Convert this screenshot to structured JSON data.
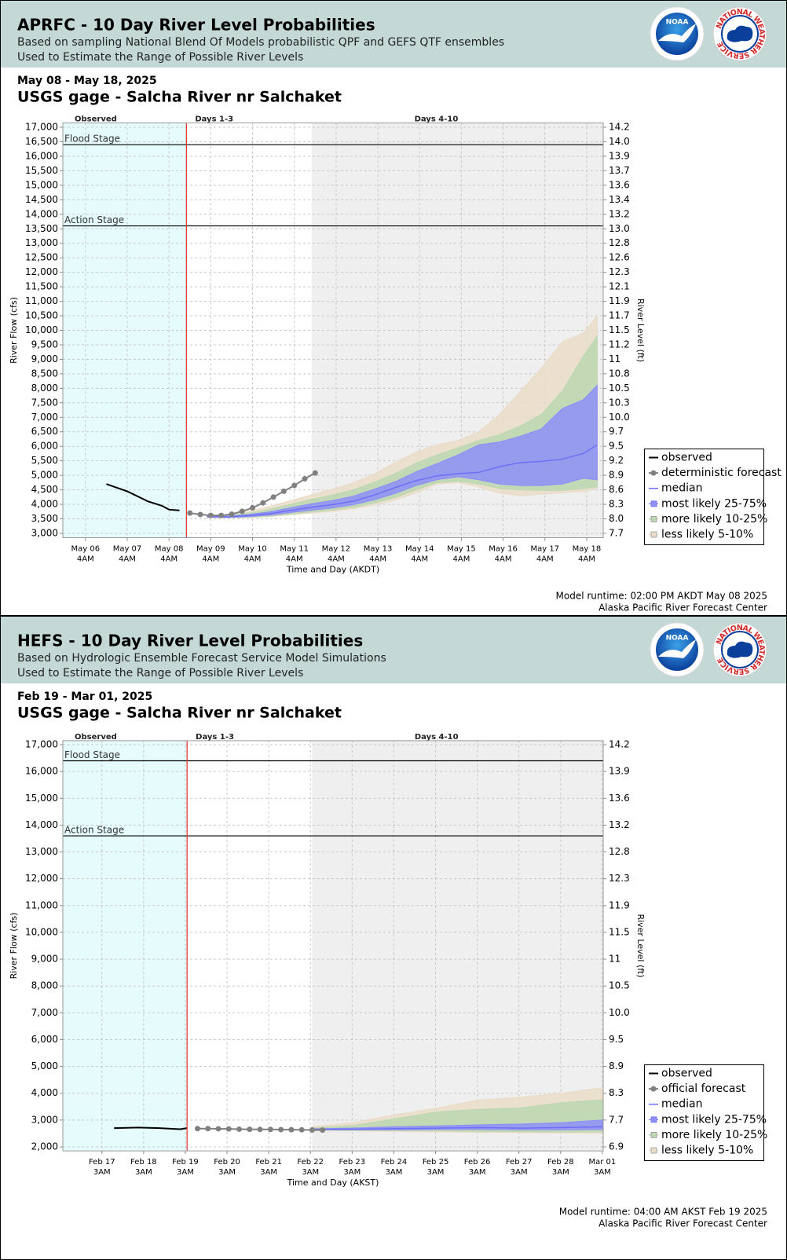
{
  "chart_data": [
    {
      "type": "band-line",
      "title": "APRFC - 10 Day River Level Probabilities",
      "subtitle": "Based on sampling National Blend Of Models probabilistic QPF and GEFS QTF ensembles",
      "subtitle2": "Used to Estimate the Range of Possible River Levels",
      "logos": [
        "NOAA",
        "NATIONAL WEATHER SERVICE"
      ],
      "date_range": "May 08 - May 18, 2025",
      "gage": "USGS gage - Salcha River nr Salchaket",
      "ylabel": "River Flow (cfs)",
      "y2label": "River Level (ft)",
      "xlabel": "Time and Day (AKDT)",
      "footer": [
        "Model runtime: 02:00 PM AKDT May 08 2025",
        "Alaska Pacific River Forecast Center"
      ],
      "region_labels": [
        "Observed",
        "Days 1-3",
        "Days 4-10"
      ],
      "now": "2025-05-08T14:00",
      "extended_start": "2025-05-11T14:00",
      "xlim": [
        "2025-05-05T15:00",
        "2025-05-18T13:30"
      ],
      "xticks": [
        {
          "value": "2025-05-06T04:00",
          "label": "May 06",
          "label2": "4AM"
        },
        {
          "value": "2025-05-07T04:00",
          "label": "May 07",
          "label2": "4AM"
        },
        {
          "value": "2025-05-08T04:00",
          "label": "May 08",
          "label2": "4AM"
        },
        {
          "value": "2025-05-09T04:00",
          "label": "May 09",
          "label2": "4AM"
        },
        {
          "value": "2025-05-10T04:00",
          "label": "May 10",
          "label2": "4AM"
        },
        {
          "value": "2025-05-11T04:00",
          "label": "May 11",
          "label2": "4AM"
        },
        {
          "value": "2025-05-12T04:00",
          "label": "May 12",
          "label2": "4AM"
        },
        {
          "value": "2025-05-13T04:00",
          "label": "May 13",
          "label2": "4AM"
        },
        {
          "value": "2025-05-14T04:00",
          "label": "May 14",
          "label2": "4AM"
        },
        {
          "value": "2025-05-15T04:00",
          "label": "May 15",
          "label2": "4AM"
        },
        {
          "value": "2025-05-16T04:00",
          "label": "May 16",
          "label2": "4AM"
        },
        {
          "value": "2025-05-17T04:00",
          "label": "May 17",
          "label2": "4AM"
        },
        {
          "value": "2025-05-18T04:00",
          "label": "May 18",
          "label2": "4AM"
        }
      ],
      "ylim": [
        2850,
        17150
      ],
      "yticks": [
        {
          "value": 3000,
          "label": "3,000"
        },
        {
          "value": 3500,
          "label": "3,500"
        },
        {
          "value": 4000,
          "label": "4,000"
        },
        {
          "value": 4500,
          "label": "4,500"
        },
        {
          "value": 5000,
          "label": "5,000"
        },
        {
          "value": 5500,
          "label": "5,500"
        },
        {
          "value": 6000,
          "label": "6,000"
        },
        {
          "value": 6500,
          "label": "6,500"
        },
        {
          "value": 7000,
          "label": "7,000"
        },
        {
          "value": 7500,
          "label": "7,500"
        },
        {
          "value": 8000,
          "label": "8,000"
        },
        {
          "value": 8500,
          "label": "8,500"
        },
        {
          "value": 9000,
          "label": "9,000"
        },
        {
          "value": 9500,
          "label": "9,500"
        },
        {
          "value": 10000,
          "label": "10,000"
        },
        {
          "value": 10500,
          "label": "10,500"
        },
        {
          "value": 11000,
          "label": "11,000"
        },
        {
          "value": 11500,
          "label": "11,500"
        },
        {
          "value": 12000,
          "label": "12,000"
        },
        {
          "value": 12500,
          "label": "12,500"
        },
        {
          "value": 13000,
          "label": "13,000"
        },
        {
          "value": 13500,
          "label": "13,500"
        },
        {
          "value": 14000,
          "label": "14,000"
        },
        {
          "value": 14500,
          "label": "14,500"
        },
        {
          "value": 15000,
          "label": "15,000"
        },
        {
          "value": 15500,
          "label": "15,500"
        },
        {
          "value": 16000,
          "label": "16,000"
        },
        {
          "value": 16500,
          "label": "16,500"
        },
        {
          "value": 17000,
          "label": "17,000"
        }
      ],
      "y2ticks": [
        7.7,
        {
          "value": 8,
          "label": "8.0"
        },
        8.3,
        8.6,
        8.9,
        9.2,
        9.5,
        9.7,
        {
          "value": 10,
          "label": "10.0"
        },
        10.3,
        10.5,
        10.8,
        11,
        11.2,
        11.5,
        11.7,
        11.9,
        12.1,
        12.3,
        12.6,
        12.8,
        {
          "value": 13,
          "label": "13.0"
        },
        13.2,
        13.4,
        13.6,
        13.7,
        13.9,
        {
          "value": 14,
          "label": "14.0"
        },
        14.2
      ],
      "grid": true,
      "stages": [
        {
          "label": "Flood Stage",
          "value": 16400
        },
        {
          "label": "Action Stage",
          "value": 13600
        }
      ],
      "band_x": [
        "2025-05-09T02:00",
        "2025-05-09T14:00",
        "2025-05-10T02:00",
        "2025-05-10T14:00",
        "2025-05-11T02:00",
        "2025-05-11T14:00",
        "2025-05-12T02:00",
        "2025-05-12T14:00",
        "2025-05-13T02:00",
        "2025-05-13T14:00",
        "2025-05-14T02:00",
        "2025-05-14T14:00",
        "2025-05-15T02:00",
        "2025-05-15T14:00",
        "2025-05-16T02:00",
        "2025-05-16T14:00",
        "2025-05-17T02:00",
        "2025-05-17T14:00",
        "2025-05-18T02:00",
        "2025-05-18T10:00"
      ],
      "series": [
        {
          "name": "observed",
          "color": "#000000",
          "x": [
            "2025-05-06T16:00",
            "2025-05-07T04:00",
            "2025-05-07T16:00",
            "2025-05-08T00:00",
            "2025-05-08T04:00",
            "2025-05-08T10:00"
          ],
          "values": [
            4700,
            4450,
            4100,
            3950,
            3820,
            3790
          ]
        },
        {
          "name": "deterministic forecast",
          "color": "#808080",
          "x": [
            "2025-05-08T16:00",
            "2025-05-08T22:00",
            "2025-05-09T04:00",
            "2025-05-09T10:00",
            "2025-05-09T16:00",
            "2025-05-09T22:00",
            "2025-05-10T04:00",
            "2025-05-10T10:00",
            "2025-05-10T16:00",
            "2025-05-10T22:00",
            "2025-05-11T04:00",
            "2025-05-11T10:00",
            "2025-05-11T16:00"
          ],
          "values": [
            3700,
            3650,
            3620,
            3620,
            3660,
            3760,
            3880,
            4050,
            4250,
            4450,
            4650,
            4880,
            5080
          ]
        },
        {
          "name": "median",
          "color": "#6f6ff5",
          "values": [
            3570,
            3570,
            3610,
            3680,
            3790,
            3900,
            3990,
            4110,
            4320,
            4580,
            4820,
            4980,
            5060,
            5100,
            5300,
            5440,
            5480,
            5560,
            5750,
            6050
          ]
        },
        {
          "name": "most likely 25-75%",
          "color": "#8f8ff7",
          "low": [
            3560,
            3550,
            3580,
            3630,
            3720,
            3800,
            3880,
            3990,
            4160,
            4380,
            4650,
            4850,
            4950,
            4850,
            4700,
            4650,
            4650,
            4700,
            4900,
            4850
          ],
          "high": [
            3580,
            3590,
            3650,
            3740,
            3880,
            4020,
            4130,
            4280,
            4520,
            4780,
            5120,
            5400,
            5700,
            6050,
            6150,
            6350,
            6600,
            7300,
            7600,
            8100
          ]
        },
        {
          "name": "more likely 10-25%",
          "color": "#bcd8b2",
          "low": [
            3560,
            3545,
            3560,
            3600,
            3670,
            3740,
            3810,
            3900,
            4050,
            4240,
            4500,
            4750,
            4800,
            4700,
            4550,
            4500,
            4480,
            4480,
            4550,
            4600
          ],
          "high": [
            3590,
            3610,
            3700,
            3830,
            4000,
            4170,
            4320,
            4500,
            4760,
            5060,
            5420,
            5700,
            5950,
            6200,
            6400,
            6700,
            7100,
            7900,
            9100,
            9800
          ]
        },
        {
          "name": "less likely 5-10%",
          "color": "#eadcc8",
          "low": [
            3560,
            3540,
            3550,
            3580,
            3640,
            3700,
            3760,
            3850,
            3980,
            4150,
            4400,
            4700,
            4750,
            4600,
            4380,
            4300,
            4350,
            4400,
            4450,
            4550
          ],
          "high": [
            3600,
            3640,
            3760,
            3930,
            4130,
            4330,
            4520,
            4750,
            5050,
            5450,
            5800,
            6050,
            6200,
            6500,
            7100,
            7900,
            8700,
            9600,
            9900,
            10500
          ]
        }
      ]
    },
    {
      "type": "band-line",
      "title": "HEFS - 10 Day River Level Probabilities",
      "subtitle": "Based on Hydrologic Ensemble Forecast Service Model Simulations",
      "subtitle2": "Used to Estimate the Range of Possible River Levels",
      "logos": [
        "NOAA",
        "NATIONAL WEATHER SERVICE"
      ],
      "date_range": "Feb 19 - Mar 01, 2025",
      "gage": "USGS gage - Salcha River nr Salchaket",
      "ylabel": "River Flow (cfs)",
      "y2label": "River Level (ft)",
      "xlabel": "Time and Day (AKST)",
      "footer": [
        "Model runtime: 04:00 AM AKST Feb 19 2025",
        "Alaska Pacific River Forecast Center"
      ],
      "region_labels": [
        "Observed",
        "Days 1-3",
        "Days 4-10"
      ],
      "now": "2025-02-19T04:00",
      "extended_start": "2025-02-22T04:00",
      "xlim": [
        "2025-02-16T04:30",
        "2025-03-01T03:30"
      ],
      "xticks": [
        {
          "value": "2025-02-17T03:00",
          "label": "Feb 17",
          "label2": "3AM"
        },
        {
          "value": "2025-02-18T03:00",
          "label": "Feb 18",
          "label2": "3AM"
        },
        {
          "value": "2025-02-19T03:00",
          "label": "Feb 19",
          "label2": "3AM"
        },
        {
          "value": "2025-02-20T03:00",
          "label": "Feb 20",
          "label2": "3AM"
        },
        {
          "value": "2025-02-21T03:00",
          "label": "Feb 21",
          "label2": "3AM"
        },
        {
          "value": "2025-02-22T03:00",
          "label": "Feb 22",
          "label2": "3AM"
        },
        {
          "value": "2025-02-23T03:00",
          "label": "Feb 23",
          "label2": "3AM"
        },
        {
          "value": "2025-02-24T03:00",
          "label": "Feb 24",
          "label2": "3AM"
        },
        {
          "value": "2025-02-25T03:00",
          "label": "Feb 25",
          "label2": "3AM"
        },
        {
          "value": "2025-02-26T03:00",
          "label": "Feb 26",
          "label2": "3AM"
        },
        {
          "value": "2025-02-27T03:00",
          "label": "Feb 27",
          "label2": "3AM"
        },
        {
          "value": "2025-02-28T03:00",
          "label": "Feb 28",
          "label2": "3AM"
        },
        {
          "value": "2025-03-01T03:00",
          "label": "Mar 01",
          "label2": "3AM"
        }
      ],
      "ylim": [
        1850,
        17150
      ],
      "yticks": [
        {
          "value": 2000,
          "label": "2,000"
        },
        {
          "value": 3000,
          "label": "3,000"
        },
        {
          "value": 4000,
          "label": "4,000"
        },
        {
          "value": 5000,
          "label": "5,000"
        },
        {
          "value": 6000,
          "label": "6,000"
        },
        {
          "value": 7000,
          "label": "7,000"
        },
        {
          "value": 8000,
          "label": "8,000"
        },
        {
          "value": 9000,
          "label": "9,000"
        },
        {
          "value": 10000,
          "label": "10,000"
        },
        {
          "value": 11000,
          "label": "11,000"
        },
        {
          "value": 12000,
          "label": "12,000"
        },
        {
          "value": 13000,
          "label": "13,000"
        },
        {
          "value": 14000,
          "label": "14,000"
        },
        {
          "value": 15000,
          "label": "15,000"
        },
        {
          "value": 16000,
          "label": "16,000"
        },
        {
          "value": 17000,
          "label": "17,000"
        }
      ],
      "y2ticks": [
        6.9,
        7.7,
        8.3,
        8.9,
        9.5,
        {
          "value": 10,
          "label": "10.0"
        },
        10.5,
        11,
        11.5,
        11.9,
        12.3,
        12.8,
        13.2,
        13.6,
        13.9,
        14.2
      ],
      "grid": true,
      "stages": [
        {
          "label": "Flood Stage",
          "value": 16400
        },
        {
          "label": "Action Stage",
          "value": 13600
        }
      ],
      "band_x": [
        "2025-02-22T04:00",
        "2025-02-23T04:00",
        "2025-02-24T04:00",
        "2025-02-25T04:00",
        "2025-02-26T04:00",
        "2025-02-27T04:00",
        "2025-02-28T04:00",
        "2025-03-01T03:00"
      ],
      "series": [
        {
          "name": "observed",
          "color": "#000000",
          "x": [
            "2025-02-17T10:00",
            "2025-02-18T00:00",
            "2025-02-18T12:00",
            "2025-02-19T00:00",
            "2025-02-19T04:00"
          ],
          "values": [
            2700,
            2720,
            2700,
            2660,
            2700
          ]
        },
        {
          "name": "official forecast",
          "color": "#808080",
          "x": [
            "2025-02-19T10:00",
            "2025-02-19T16:00",
            "2025-02-19T22:00",
            "2025-02-20T04:00",
            "2025-02-20T10:00",
            "2025-02-20T16:00",
            "2025-02-20T22:00",
            "2025-02-21T04:00",
            "2025-02-21T10:00",
            "2025-02-21T16:00",
            "2025-02-21T22:00",
            "2025-02-22T04:00",
            "2025-02-22T10:00"
          ],
          "values": [
            2680,
            2680,
            2675,
            2670,
            2660,
            2655,
            2650,
            2650,
            2645,
            2640,
            2635,
            2630,
            2625
          ]
        },
        {
          "name": "median",
          "color": "#6f6ff5",
          "values": [
            2650,
            2660,
            2680,
            2700,
            2720,
            2700,
            2720,
            2750
          ]
        },
        {
          "name": "most likely 25-75%",
          "color": "#8f8ff7",
          "low": [
            2640,
            2640,
            2640,
            2650,
            2650,
            2640,
            2640,
            2650
          ],
          "high": [
            2670,
            2700,
            2750,
            2780,
            2820,
            2850,
            2900,
            3000
          ]
        },
        {
          "name": "more likely 10-25%",
          "color": "#bcd8b2",
          "low": [
            2630,
            2620,
            2610,
            2600,
            2580,
            2570,
            2560,
            2560
          ],
          "high": [
            2700,
            2800,
            3050,
            3300,
            3400,
            3450,
            3650,
            3750
          ]
        },
        {
          "name": "less likely 5-10%",
          "color": "#eadcc8",
          "low": [
            2620,
            2600,
            2580,
            2560,
            2540,
            2530,
            2520,
            2510
          ],
          "high": [
            2750,
            2900,
            3200,
            3450,
            3750,
            3850,
            4000,
            4200
          ]
        }
      ]
    }
  ]
}
